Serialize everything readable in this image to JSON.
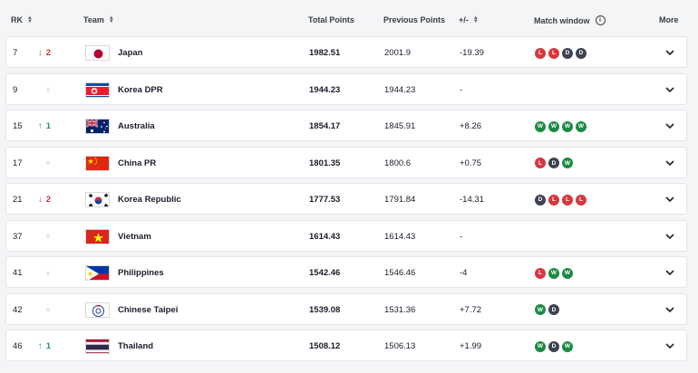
{
  "header": {
    "rk": "RK",
    "team": "Team",
    "total": "Total Points",
    "previous": "Previous Points",
    "plusminus": "+/-",
    "window": "Match window",
    "more": "More"
  },
  "colors": {
    "L": "#d7373f",
    "D": "#3e4351",
    "W": "#1c8a43"
  },
  "rows": [
    {
      "rank": "7",
      "move": "2",
      "dir": "down",
      "team": "Japan",
      "flag": "japan",
      "total": "1982.51",
      "previous": "2001.9",
      "diff": "-19.39",
      "results": [
        "L",
        "L",
        "D",
        "D"
      ]
    },
    {
      "rank": "9",
      "move": "",
      "dir": "none",
      "team": "Korea DPR",
      "flag": "korea-dpr",
      "total": "1944.23",
      "previous": "1944.23",
      "diff": "-",
      "results": []
    },
    {
      "rank": "15",
      "move": "1",
      "dir": "up",
      "team": "Australia",
      "flag": "australia",
      "total": "1854.17",
      "previous": "1845.91",
      "diff": "+8.26",
      "results": [
        "W",
        "W",
        "W",
        "W"
      ]
    },
    {
      "rank": "17",
      "move": "",
      "dir": "none",
      "team": "China PR",
      "flag": "china",
      "total": "1801.35",
      "previous": "1800.6",
      "diff": "+0.75",
      "results": [
        "L",
        "D",
        "W"
      ]
    },
    {
      "rank": "21",
      "move": "2",
      "dir": "down",
      "team": "Korea Republic",
      "flag": "korea-republic",
      "total": "1777.53",
      "previous": "1791.84",
      "diff": "-14.31",
      "results": [
        "D",
        "L",
        "L",
        "L"
      ]
    },
    {
      "rank": "37",
      "move": "",
      "dir": "none",
      "team": "Vietnam",
      "flag": "vietnam",
      "total": "1614.43",
      "previous": "1614.43",
      "diff": "-",
      "results": []
    },
    {
      "rank": "41",
      "move": "",
      "dir": "none",
      "team": "Philippines",
      "flag": "philippines",
      "total": "1542.46",
      "previous": "1546.46",
      "diff": "-4",
      "results": [
        "L",
        "W",
        "W"
      ]
    },
    {
      "rank": "42",
      "move": "",
      "dir": "none",
      "team": "Chinese Taipei",
      "flag": "chinese-taipei",
      "total": "1539.08",
      "previous": "1531.36",
      "diff": "+7.72",
      "results": [
        "W",
        "D"
      ]
    },
    {
      "rank": "46",
      "move": "1",
      "dir": "up",
      "team": "Thailand",
      "flag": "thailand",
      "total": "1508.12",
      "previous": "1506.13",
      "diff": "+1.99",
      "results": [
        "W",
        "D",
        "W"
      ]
    }
  ]
}
